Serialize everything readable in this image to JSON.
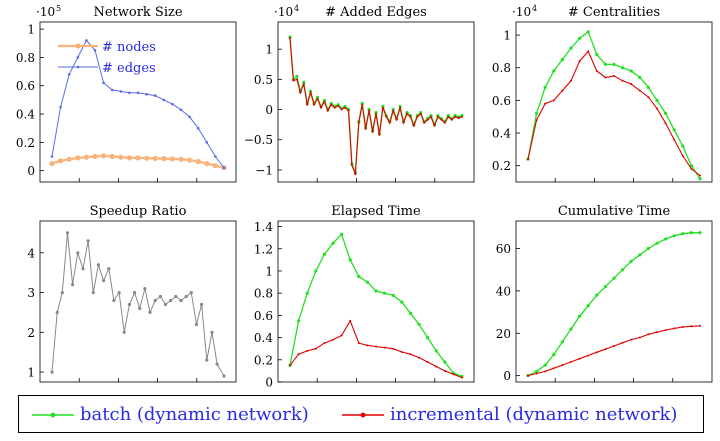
{
  "colors": {
    "batch": "#22e022",
    "incremental": "#e00000",
    "nodes": "#f9b27a",
    "edges": "#5a6bea",
    "speedup": "#888888",
    "legend_text": "#2a2ae0"
  },
  "legend": {
    "batch_label": "batch (dynamic network)",
    "incremental_label": "incremental (dynamic network)"
  },
  "chart_data": [
    {
      "type": "line",
      "title": "Network Size",
      "scale_label": "·10",
      "scale_exp": "5",
      "ylim": [
        -0.08,
        1.05
      ],
      "yticks": [
        0,
        0.2,
        0.4,
        0.6,
        0.8,
        1
      ],
      "ytick_labels": [
        "0",
        "0.2",
        "0.4",
        "0.6",
        "0.8",
        "1"
      ],
      "legend_entries": [
        "# nodes",
        "# edges"
      ],
      "x": [
        0,
        5,
        10,
        15,
        20,
        25,
        30,
        35,
        40,
        45,
        50,
        55,
        60,
        65,
        70,
        75,
        80,
        85,
        90,
        95,
        100
      ],
      "series": [
        {
          "name": "# nodes",
          "key": "nodes",
          "values": [
            0.05,
            0.07,
            0.08,
            0.09,
            0.095,
            0.1,
            0.105,
            0.1,
            0.095,
            0.09,
            0.09,
            0.088,
            0.087,
            0.085,
            0.083,
            0.08,
            0.075,
            0.065,
            0.05,
            0.035,
            0.02
          ]
        },
        {
          "name": "# edges",
          "key": "edges",
          "values": [
            0.1,
            0.45,
            0.68,
            0.8,
            0.92,
            0.85,
            0.62,
            0.57,
            0.56,
            0.55,
            0.55,
            0.54,
            0.53,
            0.5,
            0.47,
            0.43,
            0.38,
            0.3,
            0.2,
            0.1,
            0.02
          ]
        }
      ]
    },
    {
      "type": "line",
      "title": "# Added Edges",
      "scale_label": "·10",
      "scale_exp": "4",
      "ylim": [
        -1.2,
        1.45
      ],
      "yticks": [
        -1,
        -0.5,
        0,
        0.5,
        1
      ],
      "ytick_labels": [
        "−1",
        "−0.5",
        "0",
        "0.5",
        "1"
      ],
      "x": [
        0,
        2,
        4,
        6,
        8,
        10,
        12,
        14,
        16,
        18,
        20,
        22,
        24,
        26,
        28,
        30,
        32,
        34,
        36,
        38,
        40,
        42,
        44,
        46,
        48,
        50,
        52,
        54,
        56,
        58,
        60,
        62,
        64,
        66,
        68,
        70,
        72,
        74,
        76,
        78,
        80,
        82,
        84,
        86,
        88,
        90,
        92,
        94,
        96,
        98,
        100
      ],
      "series": [
        {
          "name": "batch (dynamic network)",
          "key": "batch",
          "values": [
            1.2,
            0.5,
            0.55,
            0.3,
            0.45,
            0.1,
            0.3,
            0.1,
            0.2,
            0.05,
            0.15,
            0.0,
            0.1,
            0.05,
            0.08,
            0.02,
            0.05,
            0.0,
            -0.9,
            -1.05,
            -0.2,
            0.1,
            -0.3,
            0.0,
            -0.35,
            -0.05,
            -0.4,
            0.05,
            -0.1,
            -0.2,
            0.0,
            -0.15,
            0.05,
            -0.2,
            -0.05,
            -0.1,
            -0.25,
            -0.1,
            -0.05,
            -0.2,
            -0.15,
            -0.1,
            -0.25,
            -0.1,
            -0.15,
            -0.2,
            -0.1,
            -0.15,
            -0.1,
            -0.12,
            -0.1
          ]
        },
        {
          "name": "incremental (dynamic network)",
          "key": "incremental",
          "values": [
            1.18,
            0.48,
            0.5,
            0.28,
            0.42,
            0.08,
            0.28,
            0.08,
            0.18,
            0.03,
            0.13,
            -0.02,
            0.08,
            0.03,
            0.06,
            0.0,
            0.03,
            -0.02,
            -0.92,
            -1.07,
            -0.22,
            0.08,
            -0.32,
            -0.02,
            -0.37,
            -0.07,
            -0.42,
            0.03,
            -0.12,
            -0.22,
            -0.02,
            -0.17,
            0.03,
            -0.22,
            -0.07,
            -0.12,
            -0.27,
            -0.12,
            -0.07,
            -0.22,
            -0.17,
            -0.12,
            -0.27,
            -0.12,
            -0.17,
            -0.22,
            -0.12,
            -0.17,
            -0.12,
            -0.14,
            -0.12
          ]
        }
      ]
    },
    {
      "type": "line",
      "title": "# Centralities",
      "scale_label": "·10",
      "scale_exp": "4",
      "ylim": [
        0.1,
        1.08
      ],
      "yticks": [
        0.2,
        0.4,
        0.6,
        0.8,
        1
      ],
      "ytick_labels": [
        "0.2",
        "0.4",
        "0.6",
        "0.8",
        "1"
      ],
      "x": [
        0,
        5,
        10,
        15,
        20,
        25,
        30,
        35,
        40,
        45,
        50,
        55,
        60,
        65,
        70,
        75,
        80,
        85,
        90,
        95,
        100
      ],
      "series": [
        {
          "name": "batch (dynamic network)",
          "key": "batch",
          "values": [
            0.24,
            0.52,
            0.68,
            0.78,
            0.85,
            0.92,
            0.98,
            1.02,
            0.88,
            0.82,
            0.82,
            0.8,
            0.78,
            0.74,
            0.68,
            0.6,
            0.52,
            0.42,
            0.32,
            0.2,
            0.12
          ]
        },
        {
          "name": "incremental (dynamic network)",
          "key": "incremental",
          "values": [
            0.24,
            0.48,
            0.58,
            0.6,
            0.66,
            0.72,
            0.84,
            0.9,
            0.78,
            0.74,
            0.75,
            0.72,
            0.7,
            0.66,
            0.62,
            0.55,
            0.46,
            0.36,
            0.26,
            0.18,
            0.14
          ]
        }
      ]
    },
    {
      "type": "line",
      "title": "Speedup Ratio",
      "ylim": [
        0.75,
        4.8
      ],
      "yticks": [
        1,
        2,
        3,
        4
      ],
      "ytick_labels": [
        "1",
        "2",
        "3",
        "4"
      ],
      "x": [
        0,
        3,
        6,
        9,
        12,
        15,
        18,
        21,
        24,
        27,
        30,
        33,
        36,
        39,
        42,
        45,
        48,
        51,
        54,
        57,
        60,
        63,
        66,
        69,
        72,
        75,
        78,
        81,
        84,
        87,
        90,
        93,
        96,
        100
      ],
      "series": [
        {
          "name": "Speedup Ratio",
          "key": "speedup",
          "values": [
            1.0,
            2.5,
            3.0,
            4.5,
            3.2,
            4.0,
            3.6,
            4.3,
            3.0,
            3.7,
            3.3,
            3.6,
            2.8,
            3.0,
            2.0,
            2.7,
            3.0,
            2.6,
            3.1,
            2.5,
            2.8,
            2.9,
            2.7,
            2.8,
            2.9,
            2.8,
            2.9,
            3.0,
            2.2,
            2.7,
            1.3,
            2.0,
            1.2,
            0.9
          ]
        }
      ]
    },
    {
      "type": "line",
      "title": "Elapsed Time",
      "ylim": [
        0,
        1.45
      ],
      "yticks": [
        0,
        0.2,
        0.4,
        0.6,
        0.8,
        1,
        1.2,
        1.4
      ],
      "ytick_labels": [
        "0",
        "0.2",
        "0.4",
        "0.6",
        "0.8",
        "1",
        "1.2",
        "1.4"
      ],
      "x": [
        0,
        5,
        10,
        15,
        20,
        25,
        30,
        35,
        40,
        45,
        50,
        55,
        60,
        65,
        70,
        75,
        80,
        85,
        90,
        95,
        100
      ],
      "series": [
        {
          "name": "batch (dynamic network)",
          "key": "batch",
          "values": [
            0.15,
            0.55,
            0.8,
            1.0,
            1.15,
            1.25,
            1.33,
            1.1,
            0.95,
            0.9,
            0.82,
            0.8,
            0.78,
            0.72,
            0.62,
            0.52,
            0.4,
            0.28,
            0.18,
            0.08,
            0.05
          ]
        },
        {
          "name": "incremental (dynamic network)",
          "key": "incremental",
          "values": [
            0.15,
            0.25,
            0.28,
            0.3,
            0.35,
            0.38,
            0.42,
            0.55,
            0.35,
            0.33,
            0.32,
            0.31,
            0.3,
            0.27,
            0.25,
            0.22,
            0.18,
            0.14,
            0.1,
            0.07,
            0.04
          ]
        }
      ]
    },
    {
      "type": "line",
      "title": "Cumulative Time",
      "ylim": [
        -3,
        73
      ],
      "yticks": [
        0,
        20,
        40,
        60
      ],
      "ytick_labels": [
        "0",
        "20",
        "40",
        "60"
      ],
      "x": [
        0,
        5,
        10,
        15,
        20,
        25,
        30,
        35,
        40,
        45,
        50,
        55,
        60,
        65,
        70,
        75,
        80,
        85,
        90,
        95,
        100
      ],
      "series": [
        {
          "name": "batch (dynamic network)",
          "key": "batch",
          "values": [
            0,
            2,
            5,
            10,
            16,
            22,
            28,
            33,
            38,
            42,
            46,
            50,
            54,
            57,
            60,
            62.5,
            64.5,
            66,
            67,
            67.5,
            67.5
          ]
        },
        {
          "name": "incremental (dynamic network)",
          "key": "incremental",
          "values": [
            0,
            1,
            2,
            3.5,
            5,
            6.5,
            8,
            9.5,
            11,
            12.5,
            14,
            15.5,
            17,
            18,
            19.5,
            20.5,
            21.5,
            22.3,
            23,
            23.3,
            23.5
          ]
        }
      ]
    }
  ]
}
